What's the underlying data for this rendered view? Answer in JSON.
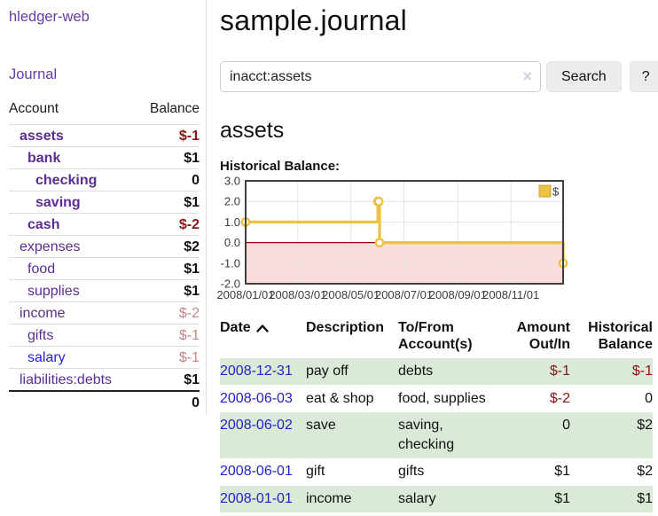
{
  "sidebar": {
    "brand": "hledger-web",
    "journal_link": "Journal",
    "accounts": {
      "col_account": "Account",
      "col_balance": "Balance",
      "rows": [
        {
          "name": "assets",
          "depth": 1,
          "bold": true,
          "link_color": "purple",
          "balance": "$-1",
          "balance_style": "neg"
        },
        {
          "name": "bank",
          "depth": 2,
          "bold": true,
          "link_color": "purple",
          "balance": "$1",
          "balance_style": "pos"
        },
        {
          "name": "checking",
          "depth": 3,
          "bold": true,
          "link_color": "purple",
          "balance": "0",
          "balance_style": "pos"
        },
        {
          "name": "saving",
          "depth": 3,
          "bold": true,
          "link_color": "purple",
          "balance": "$1",
          "balance_style": "pos"
        },
        {
          "name": "cash",
          "depth": 2,
          "bold": true,
          "link_color": "purple",
          "balance": "$-2",
          "balance_style": "neg"
        },
        {
          "name": "expenses",
          "depth": 1,
          "bold": false,
          "link_color": "purple",
          "balance": "$2",
          "balance_style": "pos"
        },
        {
          "name": "food",
          "depth": 2,
          "bold": false,
          "link_color": "purple",
          "balance": "$1",
          "balance_style": "pos"
        },
        {
          "name": "supplies",
          "depth": 2,
          "bold": false,
          "link_color": "purple",
          "balance": "$1",
          "balance_style": "pos"
        },
        {
          "name": "income",
          "depth": 1,
          "bold": false,
          "link_color": "purple",
          "balance": "$-2",
          "balance_style": "negmuted"
        },
        {
          "name": "gifts",
          "depth": 2,
          "bold": false,
          "link_color": "purple",
          "balance": "$-1",
          "balance_style": "negmuted"
        },
        {
          "name": "salary",
          "depth": 2,
          "bold": false,
          "link_color": "blue",
          "balance": "$-1",
          "balance_style": "negmuted"
        },
        {
          "name": "liabilities:debts",
          "depth": 1,
          "bold": false,
          "link_color": "purple",
          "balance": "$1",
          "balance_style": "pos"
        }
      ],
      "total": "0"
    }
  },
  "main": {
    "title": "sample.journal",
    "search": {
      "value": "inacct:assets",
      "clear_icon": "×",
      "search_button": "Search",
      "help_button": "?"
    },
    "account_heading": "assets",
    "chart_heading": "Historical Balance:"
  },
  "chart_data": {
    "type": "line",
    "style": "step-after",
    "title": "Historical Balance",
    "series": [
      {
        "name": "$",
        "color": "#edc240",
        "points": [
          [
            "2008-01-01",
            1
          ],
          [
            "2008-06-01",
            2
          ],
          [
            "2008-06-02",
            2
          ],
          [
            "2008-06-03",
            0
          ],
          [
            "2008-12-31",
            -1
          ]
        ]
      }
    ],
    "x_range": [
      "2008-01-01",
      "2008-12-31"
    ],
    "x_ticks": [
      "2008/01/01",
      "2008/03/01",
      "2008/05/01",
      "2008/07/01",
      "2008/09/01",
      "2008/11/01"
    ],
    "y_ticks": [
      "3.0",
      "2.0",
      "1.0",
      "0.0",
      "-1.0",
      "-2.0"
    ],
    "ylim": [
      -2,
      3
    ],
    "grid": true,
    "legend": "$",
    "legend_position": "top-right",
    "zero_line_color": "#8b0000",
    "negative_region_color": "#fbdcdc",
    "grid_color": "#e3e3e3",
    "border_color": "#3f3f3f",
    "axis_text_color": "#3c3c3c"
  },
  "register": {
    "headers": {
      "date": "Date",
      "description": "Description",
      "accounts": "To/From Account(s)",
      "amount": "Amount Out/In",
      "balance": "Historical Balance"
    },
    "rows": [
      {
        "date": "2008-12-31",
        "description": "pay off",
        "accounts": "debts",
        "amount": "$-1",
        "amount_neg": true,
        "balance": "$-1",
        "balance_neg": true,
        "highlight": true
      },
      {
        "date": "2008-06-03",
        "description": "eat & shop",
        "accounts": "food, supplies",
        "amount": "$-2",
        "amount_neg": true,
        "balance": "0",
        "balance_neg": false,
        "highlight": false
      },
      {
        "date": "2008-06-02",
        "description": "save",
        "accounts": "saving, checking",
        "amount": "0",
        "amount_neg": false,
        "balance": "$2",
        "balance_neg": false,
        "highlight": true
      },
      {
        "date": "2008-06-01",
        "description": "gift",
        "accounts": "gifts",
        "amount": "$1",
        "amount_neg": false,
        "balance": "$2",
        "balance_neg": false,
        "highlight": false
      },
      {
        "date": "2008-01-01",
        "description": "income",
        "accounts": "salary",
        "amount": "$1",
        "amount_neg": false,
        "balance": "$1",
        "balance_neg": false,
        "highlight": true
      }
    ]
  },
  "colors": {
    "accent_purple": "#5c2d91",
    "link_blue": "#2222cc",
    "negative": "#8b1414",
    "negative_muted": "#c28484",
    "row_stripe_green": "#dbead8",
    "series_gold": "#edc240"
  }
}
